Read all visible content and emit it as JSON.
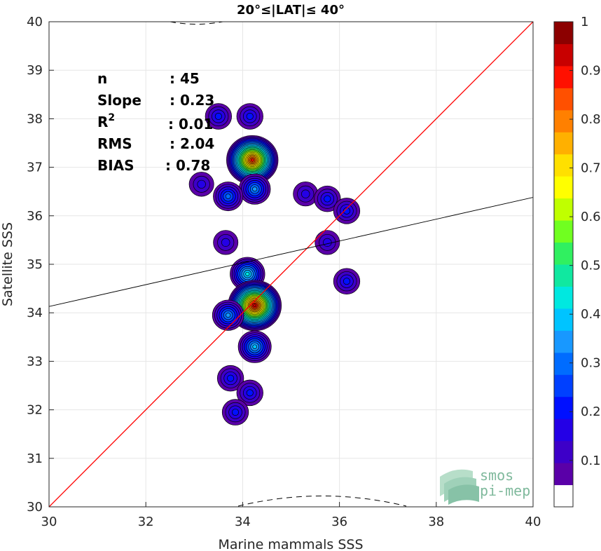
{
  "chart_data": {
    "type": "heatmap",
    "title": "20°≤|LAT|≤ 40°",
    "xlabel": "Marine mammals SSS",
    "ylabel": "Satellite SSS",
    "xlim": [
      30,
      40
    ],
    "ylim": [
      30,
      40
    ],
    "x_ticks": [
      "30",
      "32",
      "34",
      "36",
      "38",
      "40"
    ],
    "y_ticks": [
      "30",
      "31",
      "32",
      "33",
      "34",
      "35",
      "36",
      "37",
      "38",
      "39",
      "40"
    ],
    "grid": true,
    "colorbar": {
      "position": "right",
      "ticks": [
        "0.1",
        "0.2",
        "0.3",
        "0.4",
        "0.5",
        "0.6",
        "0.7",
        "0.8",
        "0.9",
        "1"
      ],
      "levels": [
        0.05,
        0.1,
        0.15,
        0.2,
        0.25,
        0.3,
        0.35,
        0.4,
        0.45,
        0.5,
        0.55,
        0.6,
        0.65,
        0.7,
        0.75,
        0.8,
        0.85,
        0.9,
        0.95,
        1.0
      ],
      "colors": [
        "#ffffff",
        "#5a00a8",
        "#3d00c8",
        "#2400e6",
        "#0010ff",
        "#0040ff",
        "#006cff",
        "#1898ff",
        "#00c4ff",
        "#00e8e0",
        "#10e8a0",
        "#30f060",
        "#70ff20",
        "#c0ff00",
        "#ffff00",
        "#ffe000",
        "#ffb000",
        "#ff8000",
        "#ff5000",
        "#ff1000",
        "#c80000",
        "#8c0000"
      ]
    },
    "stats": [
      {
        "label": "n",
        "value": ": 45"
      },
      {
        "label": "Slope",
        "value": ": 0.23"
      },
      {
        "label": "R",
        "sup": "2",
        "value": ": 0.01"
      },
      {
        "label": "RMS",
        "value": ": 2.04"
      },
      {
        "label": "BIAS",
        "value": ": 0.78"
      }
    ],
    "identity_line": {
      "from": [
        30,
        30
      ],
      "to": [
        40,
        40
      ],
      "color": "#ff0000"
    },
    "regression_line": {
      "from": [
        30,
        34.13
      ],
      "to": [
        40,
        36.38
      ],
      "color": "#000000"
    },
    "density_blobs": [
      {
        "x": 33.5,
        "y": 38.05,
        "peak": 0.2
      },
      {
        "x": 34.15,
        "y": 38.05,
        "peak": 0.2
      },
      {
        "x": 34.2,
        "y": 37.15,
        "peak": 0.95
      },
      {
        "x": 34.25,
        "y": 36.55,
        "peak": 0.35
      },
      {
        "x": 33.15,
        "y": 36.65,
        "peak": 0.15
      },
      {
        "x": 33.7,
        "y": 36.4,
        "peak": 0.3
      },
      {
        "x": 33.65,
        "y": 35.45,
        "peak": 0.15
      },
      {
        "x": 35.3,
        "y": 36.45,
        "peak": 0.15
      },
      {
        "x": 35.75,
        "y": 36.35,
        "peak": 0.2
      },
      {
        "x": 36.15,
        "y": 36.1,
        "peak": 0.2
      },
      {
        "x": 35.75,
        "y": 35.45,
        "peak": 0.15
      },
      {
        "x": 34.1,
        "y": 34.8,
        "peak": 0.45
      },
      {
        "x": 34.25,
        "y": 34.15,
        "peak": 1.0
      },
      {
        "x": 33.7,
        "y": 33.95,
        "peak": 0.35
      },
      {
        "x": 34.25,
        "y": 33.3,
        "peak": 0.4
      },
      {
        "x": 36.15,
        "y": 34.65,
        "peak": 0.2
      },
      {
        "x": 33.75,
        "y": 32.65,
        "peak": 0.2
      },
      {
        "x": 34.15,
        "y": 32.35,
        "peak": 0.2
      },
      {
        "x": 33.85,
        "y": 31.95,
        "peak": 0.2
      }
    ]
  },
  "logo": {
    "line1": "smos",
    "line2": "pi-mep"
  }
}
